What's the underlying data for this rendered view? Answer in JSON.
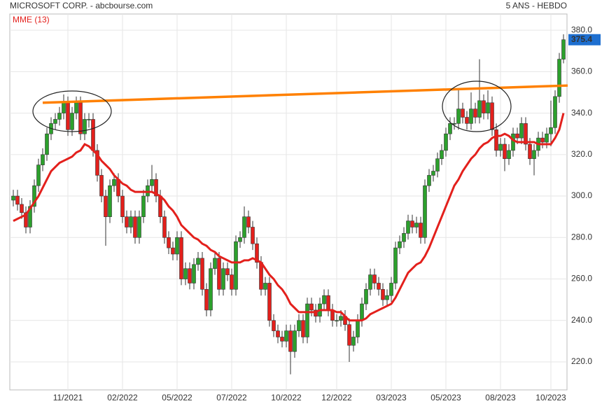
{
  "chart_data": {
    "type": "candlestick",
    "title": "MICROSOFT CORP. - abcbourse.com",
    "subtitle": "5 ANS - HEBDO",
    "categories": [
      null,
      null,
      null,
      null,
      null,
      null,
      null,
      null,
      null,
      null,
      null,
      null,
      null,
      "11/2021",
      null,
      null,
      null,
      null,
      null,
      null,
      null,
      null,
      null,
      null,
      null,
      null,
      "02/2022",
      null,
      null,
      null,
      null,
      null,
      null,
      null,
      null,
      null,
      null,
      null,
      null,
      "05/2022",
      null,
      null,
      null,
      null,
      null,
      null,
      null,
      null,
      null,
      null,
      null,
      null,
      "07/2022",
      null,
      null,
      null,
      null,
      null,
      null,
      null,
      null,
      null,
      null,
      null,
      null,
      "10/2022",
      null,
      null,
      null,
      null,
      null,
      null,
      null,
      null,
      null,
      null,
      null,
      "12/2022",
      null,
      null,
      null,
      null,
      null,
      null,
      null,
      null,
      null,
      null,
      null,
      null,
      "03/2023",
      null,
      null,
      null,
      null,
      null,
      null,
      null,
      null,
      null,
      null,
      null,
      null,
      "05/2023",
      null,
      null,
      null,
      null,
      null,
      null,
      null,
      null,
      null,
      null,
      null,
      null,
      "08/2023",
      null,
      null,
      null,
      null,
      null,
      null,
      null,
      null,
      null,
      null,
      null,
      "10/2023",
      null,
      null,
      null
    ],
    "candles": [
      [
        298,
        303,
        295,
        300
      ],
      [
        300,
        303,
        293,
        296
      ],
      [
        296,
        299,
        289,
        292
      ],
      [
        292,
        295,
        282,
        285
      ],
      [
        285,
        298,
        282,
        295
      ],
      [
        295,
        308,
        292,
        305
      ],
      [
        305,
        318,
        302,
        315
      ],
      [
        315,
        323,
        312,
        320
      ],
      [
        320,
        333,
        317,
        330
      ],
      [
        330,
        338,
        327,
        335
      ],
      [
        335,
        340,
        332,
        337
      ],
      [
        337,
        343,
        334,
        340
      ],
      [
        340,
        349,
        337,
        345
      ],
      [
        345,
        348,
        329,
        332
      ],
      [
        332,
        343,
        329,
        340
      ],
      [
        340,
        348,
        337,
        345
      ],
      [
        345,
        348,
        327,
        330
      ],
      [
        330,
        340,
        327,
        337
      ],
      [
        337,
        340,
        333,
        337
      ],
      [
        337,
        340,
        319,
        322
      ],
      [
        322,
        325,
        307,
        310
      ],
      [
        310,
        313,
        297,
        300
      ],
      [
        300,
        303,
        276,
        290
      ],
      [
        290,
        308,
        287,
        305
      ],
      [
        305,
        311,
        302,
        308
      ],
      [
        308,
        311,
        297,
        300
      ],
      [
        300,
        303,
        287,
        290
      ],
      [
        290,
        293,
        282,
        285
      ],
      [
        285,
        293,
        282,
        290
      ],
      [
        290,
        293,
        277,
        280
      ],
      [
        280,
        293,
        277,
        290
      ],
      [
        290,
        303,
        287,
        300
      ],
      [
        300,
        308,
        297,
        305
      ],
      [
        305,
        315,
        302,
        308
      ],
      [
        308,
        311,
        297,
        300
      ],
      [
        300,
        303,
        287,
        290
      ],
      [
        290,
        293,
        277,
        280
      ],
      [
        280,
        283,
        272,
        275
      ],
      [
        275,
        278,
        269,
        272
      ],
      [
        272,
        283,
        269,
        280
      ],
      [
        280,
        283,
        257,
        260
      ],
      [
        260,
        268,
        257,
        265
      ],
      [
        265,
        268,
        255,
        258
      ],
      [
        258,
        270,
        255,
        267
      ],
      [
        267,
        273,
        264,
        270
      ],
      [
        270,
        273,
        252,
        255
      ],
      [
        255,
        258,
        242,
        245
      ],
      [
        245,
        268,
        242,
        265
      ],
      [
        265,
        273,
        262,
        270
      ],
      [
        270,
        273,
        252,
        255
      ],
      [
        255,
        268,
        252,
        265
      ],
      [
        265,
        268,
        259,
        262
      ],
      [
        262,
        265,
        252,
        255
      ],
      [
        255,
        281,
        252,
        278
      ],
      [
        278,
        283,
        275,
        280
      ],
      [
        280,
        295,
        277,
        290
      ],
      [
        290,
        293,
        282,
        285
      ],
      [
        285,
        288,
        274,
        277
      ],
      [
        277,
        280,
        265,
        268
      ],
      [
        268,
        271,
        252,
        255
      ],
      [
        255,
        261,
        252,
        258
      ],
      [
        258,
        261,
        237,
        240
      ],
      [
        240,
        243,
        232,
        235
      ],
      [
        235,
        238,
        229,
        232
      ],
      [
        232,
        235,
        227,
        230
      ],
      [
        230,
        238,
        227,
        235
      ],
      [
        235,
        238,
        214,
        225
      ],
      [
        225,
        238,
        222,
        235
      ],
      [
        235,
        243,
        232,
        240
      ],
      [
        240,
        243,
        229,
        232
      ],
      [
        232,
        251,
        229,
        248
      ],
      [
        248,
        251,
        242,
        245
      ],
      [
        245,
        248,
        239,
        242
      ],
      [
        242,
        251,
        239,
        248
      ],
      [
        248,
        255,
        245,
        252
      ],
      [
        252,
        255,
        242,
        245
      ],
      [
        245,
        248,
        237,
        240
      ],
      [
        240,
        243,
        237,
        240
      ],
      [
        240,
        245,
        237,
        242
      ],
      [
        242,
        245,
        235,
        238
      ],
      [
        238,
        241,
        220,
        228
      ],
      [
        228,
        235,
        225,
        232
      ],
      [
        232,
        243,
        229,
        240
      ],
      [
        240,
        251,
        237,
        248
      ],
      [
        248,
        258,
        245,
        255
      ],
      [
        255,
        265,
        252,
        262
      ],
      [
        262,
        265,
        255,
        258
      ],
      [
        258,
        261,
        252,
        255
      ],
      [
        255,
        258,
        247,
        250
      ],
      [
        250,
        255,
        247,
        252
      ],
      [
        252,
        261,
        249,
        258
      ],
      [
        258,
        278,
        255,
        275
      ],
      [
        275,
        281,
        272,
        278
      ],
      [
        278,
        285,
        275,
        282
      ],
      [
        282,
        291,
        279,
        288
      ],
      [
        288,
        291,
        282,
        285
      ],
      [
        285,
        290,
        282,
        287
      ],
      [
        287,
        290,
        277,
        280
      ],
      [
        280,
        308,
        277,
        305
      ],
      [
        305,
        313,
        302,
        310
      ],
      [
        310,
        315,
        307,
        312
      ],
      [
        312,
        321,
        309,
        318
      ],
      [
        318,
        325,
        315,
        322
      ],
      [
        322,
        333,
        319,
        330
      ],
      [
        330,
        338,
        327,
        335
      ],
      [
        335,
        338,
        332,
        335
      ],
      [
        335,
        351,
        332,
        342
      ],
      [
        342,
        345,
        335,
        338
      ],
      [
        338,
        341,
        332,
        335
      ],
      [
        335,
        350,
        332,
        342
      ],
      [
        342,
        345,
        335,
        338
      ],
      [
        338,
        366,
        335,
        346
      ],
      [
        346,
        349,
        337,
        340
      ],
      [
        340,
        351,
        337,
        345
      ],
      [
        345,
        348,
        329,
        332
      ],
      [
        332,
        335,
        319,
        322
      ],
      [
        322,
        328,
        319,
        325
      ],
      [
        325,
        328,
        312,
        318
      ],
      [
        318,
        325,
        315,
        322
      ],
      [
        322,
        333,
        319,
        330
      ],
      [
        330,
        333,
        325,
        328
      ],
      [
        328,
        338,
        325,
        335
      ],
      [
        335,
        338,
        322,
        325
      ],
      [
        325,
        328,
        315,
        318
      ],
      [
        318,
        325,
        310,
        322
      ],
      [
        322,
        331,
        319,
        328
      ],
      [
        328,
        331,
        323,
        326
      ],
      [
        326,
        333,
        323,
        330
      ],
      [
        330,
        346,
        324,
        333
      ],
      [
        333,
        351,
        330,
        348
      ],
      [
        348,
        369,
        345,
        366
      ],
      [
        366,
        378,
        364,
        375.4
      ]
    ],
    "up_color": "#2ca02c",
    "down_color": "#e3201c",
    "series": [
      {
        "name": "MME (13)",
        "color": "#e3201c",
        "values": [
          288,
          289,
          290,
          291,
          294,
          297,
          300,
          304,
          308,
          312,
          314,
          316,
          317,
          318,
          319,
          321,
          322,
          325,
          324,
          322,
          320,
          317,
          315,
          313,
          310,
          308,
          306,
          305,
          303,
          302,
          302,
          302,
          302,
          302,
          301,
          300,
          298,
          295,
          293,
          290,
          286,
          284,
          282,
          280,
          279,
          277,
          276,
          274,
          273,
          271,
          270,
          269,
          268,
          268,
          268,
          269,
          269,
          270,
          269,
          268,
          265,
          262,
          260,
          257,
          255,
          252,
          248,
          246,
          244,
          244,
          244,
          244,
          244,
          245,
          245,
          245,
          245,
          244,
          244,
          242,
          240,
          240,
          240,
          240,
          241,
          243,
          244,
          245,
          246,
          247,
          248,
          251,
          255,
          259,
          263,
          265,
          267,
          268,
          271,
          275,
          280,
          285,
          290,
          295,
          300,
          305,
          308,
          312,
          315,
          318,
          320,
          323,
          325,
          326,
          328,
          329,
          329,
          330,
          329,
          327,
          326,
          326,
          326,
          326,
          326,
          325,
          325,
          325,
          325,
          328,
          332,
          340
        ]
      }
    ],
    "trend_line": {
      "color": "#ff8000",
      "from": [
        7,
        345
      ],
      "to": [
        132,
        353.3
      ]
    },
    "ylim": [
      206.5,
      387.8
    ],
    "yticks": [
      {
        "value": 220,
        "label": "220.0"
      },
      {
        "value": 240,
        "label": "240.0"
      },
      {
        "value": 260,
        "label": "260.0"
      },
      {
        "value": 280,
        "label": "280.0"
      },
      {
        "value": 300,
        "label": "300.0"
      },
      {
        "value": 320,
        "label": "320.0"
      },
      {
        "value": 340,
        "label": "340.0"
      },
      {
        "value": 360,
        "label": "360.0"
      },
      {
        "value": 380,
        "label": "380.0"
      }
    ],
    "grid": true
  }
}
